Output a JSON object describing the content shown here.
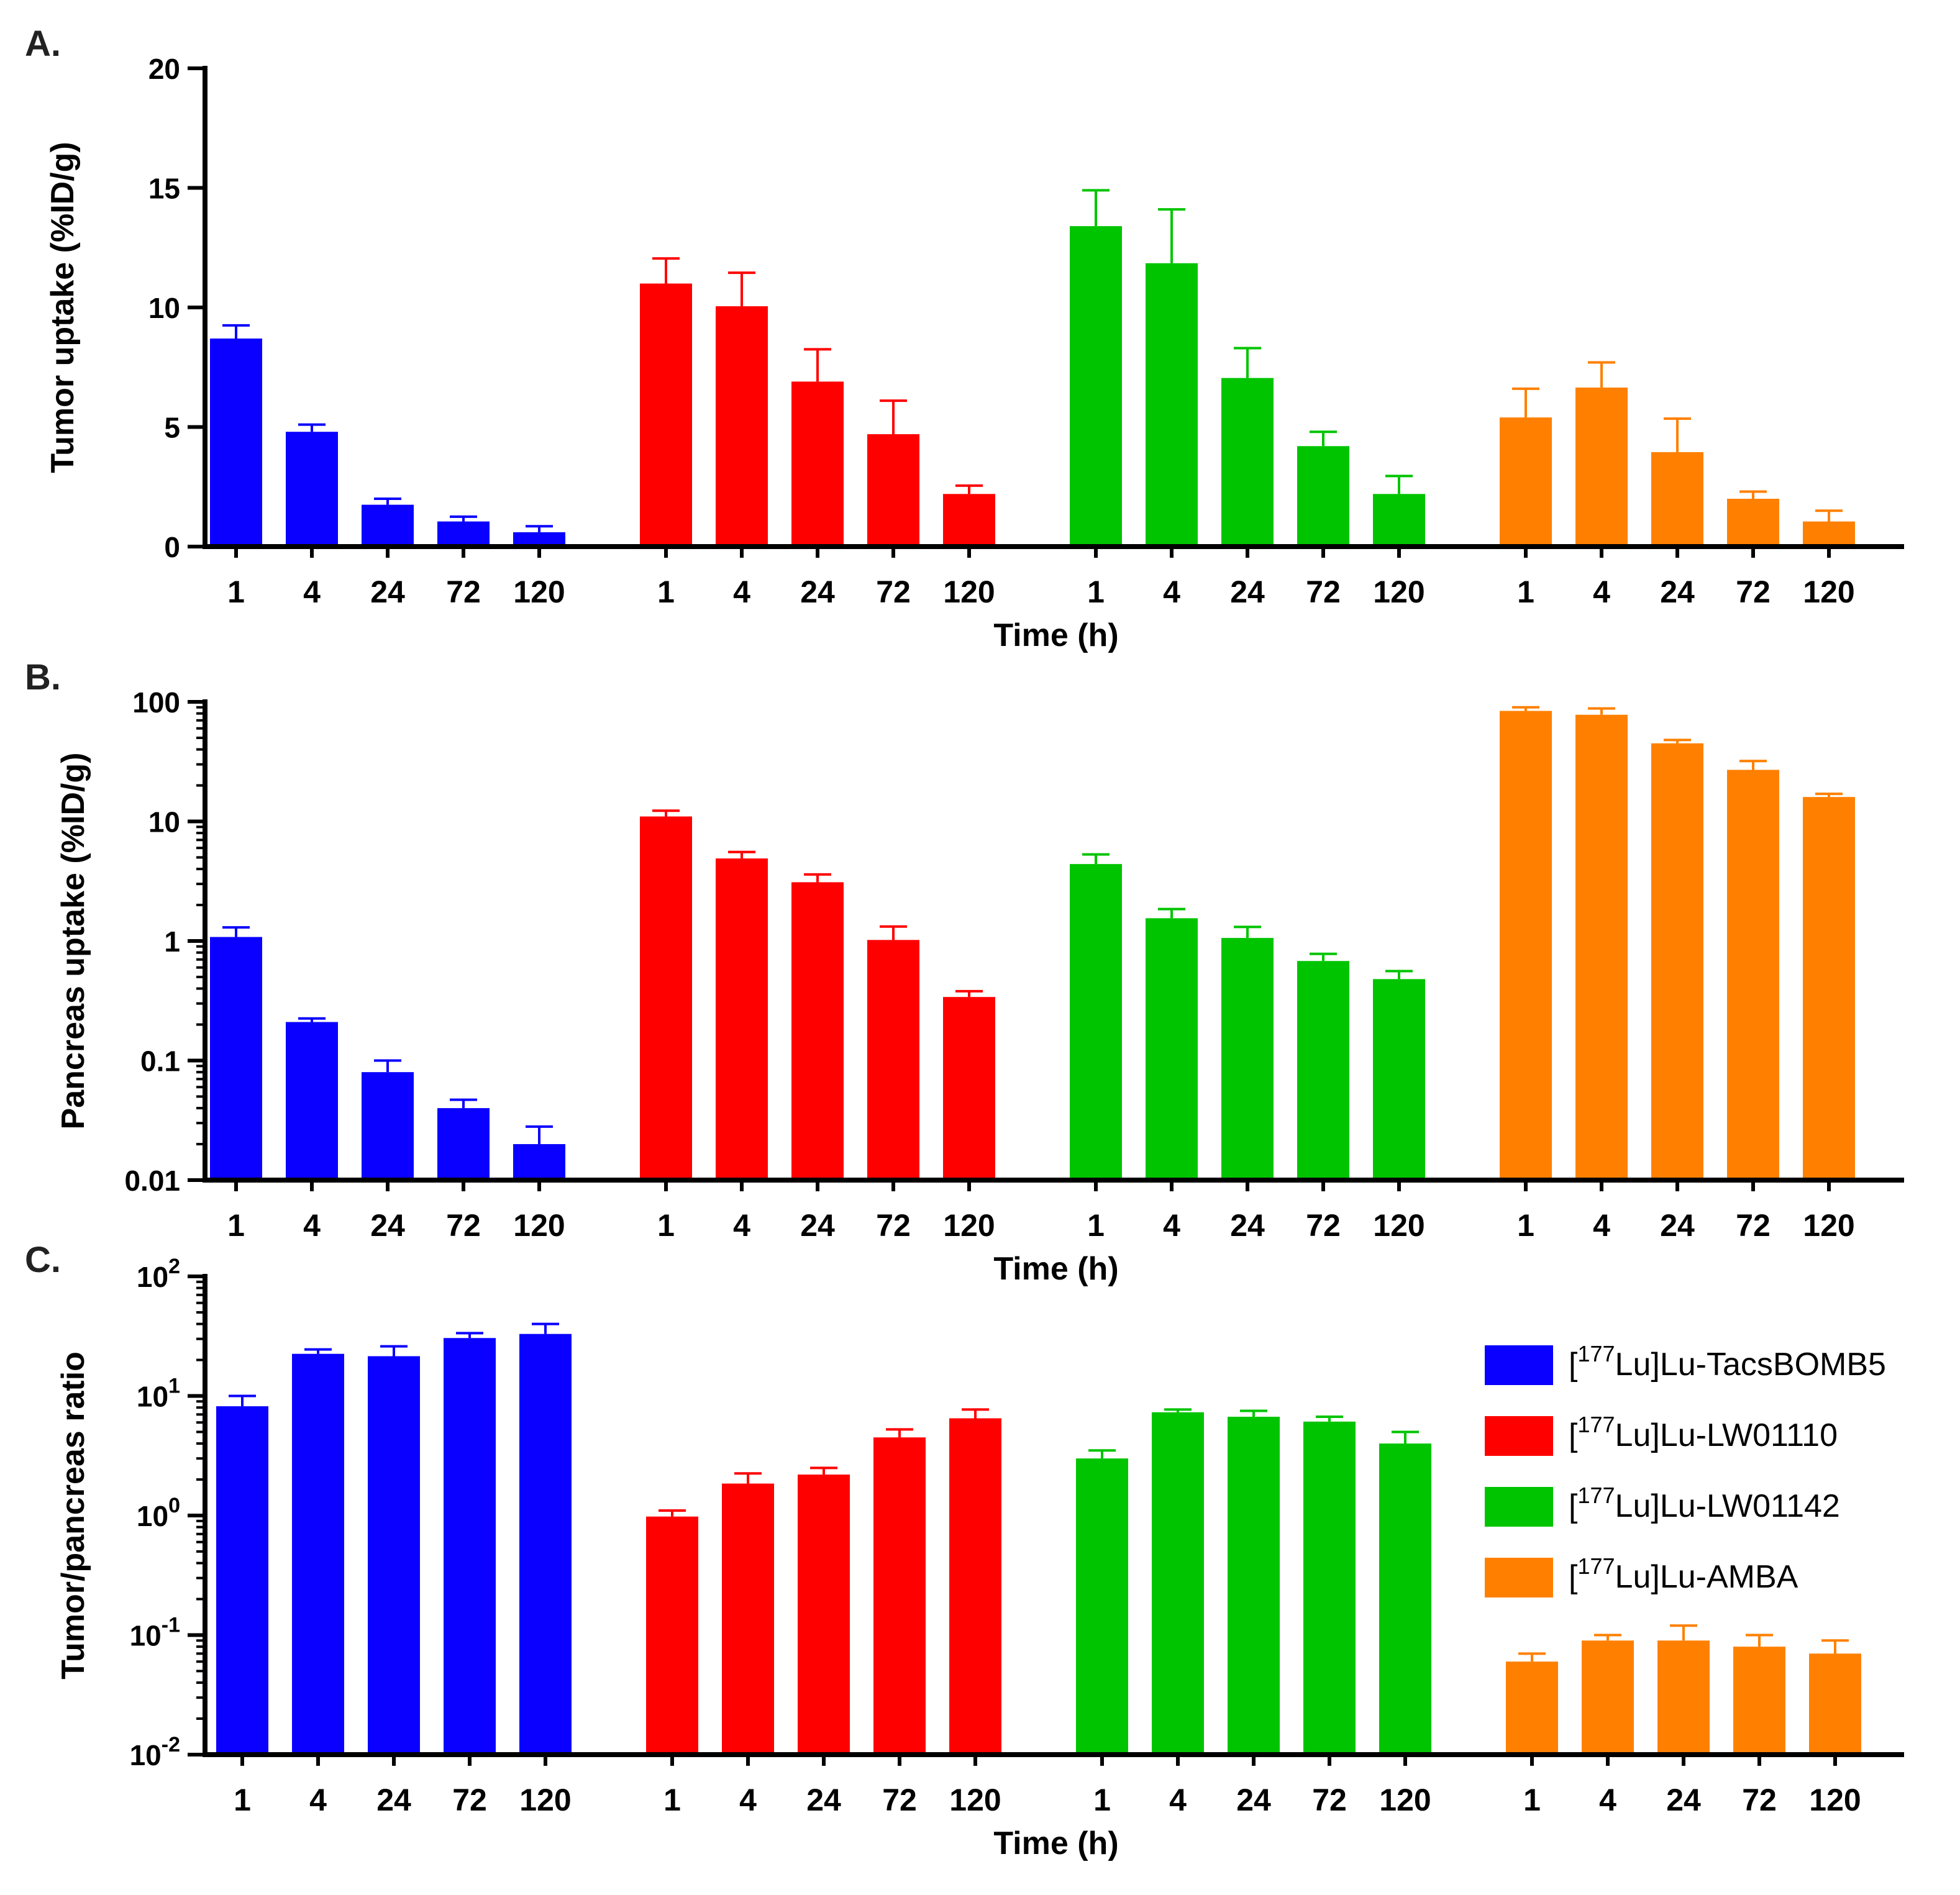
{
  "series": [
    {
      "name": "[177Lu]Lu-TacsBOMB5",
      "prefix": "[",
      "sup": "177",
      "suffix": "Lu]Lu-TacsBOMB5",
      "color": "#0a00ff"
    },
    {
      "name": "[177Lu]Lu-LW01110",
      "prefix": "[",
      "sup": "177",
      "suffix": "Lu]Lu-LW01110",
      "color": "#ff0000"
    },
    {
      "name": "[177Lu]Lu-LW01142",
      "prefix": "[",
      "sup": "177",
      "suffix": "Lu]Lu-LW01142",
      "color": "#00c400"
    },
    {
      "name": "[177Lu]Lu-AMBA",
      "prefix": "[",
      "sup": "177",
      "suffix": "Lu]Lu-AMBA",
      "color": "#ff8000"
    }
  ],
  "chart_data": [
    {
      "type": "bar",
      "panel_label": "A.",
      "title": "",
      "ylabel": "Tumor uptake (%ID/g)",
      "xlabel": "Time (h)",
      "yscale": "linear",
      "ylim": [
        0,
        20
      ],
      "yticks": [
        0,
        5,
        10,
        15,
        20
      ],
      "ytick_labels": [
        "0",
        "5",
        "10",
        "15",
        "20"
      ],
      "categories": [
        "1",
        "4",
        "24",
        "72",
        "120"
      ],
      "series": [
        {
          "name": "[177Lu]Lu-TacsBOMB5",
          "values": [
            8.7,
            4.8,
            1.75,
            1.05,
            0.6
          ],
          "errors": [
            0.55,
            0.3,
            0.25,
            0.2,
            0.25
          ]
        },
        {
          "name": "[177Lu]Lu-LW01110",
          "values": [
            11.0,
            10.05,
            6.9,
            4.7,
            2.2
          ],
          "errors": [
            1.05,
            1.4,
            1.35,
            1.4,
            0.35
          ]
        },
        {
          "name": "[177Lu]Lu-LW01142",
          "values": [
            13.4,
            11.85,
            7.05,
            4.2,
            2.2
          ],
          "errors": [
            1.5,
            2.25,
            1.25,
            0.6,
            0.75
          ]
        },
        {
          "name": "[177Lu]Lu-AMBA",
          "values": [
            5.4,
            6.65,
            3.95,
            2.0,
            1.05
          ],
          "errors": [
            1.2,
            1.05,
            1.4,
            0.3,
            0.45
          ]
        }
      ]
    },
    {
      "type": "bar",
      "panel_label": "B.",
      "title": "",
      "ylabel": "Pancreas uptake (%ID/g)",
      "xlabel": "Time (h)",
      "yscale": "log",
      "ylim": [
        0.01,
        100
      ],
      "yticks": [
        0.01,
        0.1,
        1,
        10,
        100
      ],
      "ytick_labels": [
        "0.01",
        "0.1",
        "1",
        "10",
        "100"
      ],
      "categories": [
        "1",
        "4",
        "24",
        "72",
        "120"
      ],
      "series": [
        {
          "name": "[177Lu]Lu-TacsBOMB5",
          "values": [
            1.08,
            0.21,
            0.08,
            0.04,
            0.02
          ],
          "errors": [
            0.22,
            0.015,
            0.02,
            0.007,
            0.008
          ]
        },
        {
          "name": "[177Lu]Lu-LW01110",
          "values": [
            11.0,
            4.9,
            3.1,
            1.02,
            0.34
          ],
          "errors": [
            1.3,
            0.65,
            0.5,
            0.3,
            0.04
          ]
        },
        {
          "name": "[177Lu]Lu-LW01142",
          "values": [
            4.4,
            1.55,
            1.06,
            0.68,
            0.48
          ],
          "errors": [
            0.9,
            0.3,
            0.25,
            0.1,
            0.08
          ]
        },
        {
          "name": "[177Lu]Lu-AMBA",
          "values": [
            84,
            78,
            45,
            27,
            16
          ],
          "errors": [
            6,
            10,
            3,
            5,
            1
          ]
        }
      ]
    },
    {
      "type": "bar",
      "panel_label": "C.",
      "title": "",
      "ylabel": "Tumor/pancreas ratio",
      "xlabel": "Time (h)",
      "yscale": "log",
      "ylim": [
        0.01,
        100
      ],
      "yticks": [
        0.01,
        0.1,
        1,
        10,
        100
      ],
      "ytick_labels": [
        {
          "base": "10",
          "exp": "-2"
        },
        {
          "base": "10",
          "exp": "-1"
        },
        {
          "base": "10",
          "exp": "0"
        },
        {
          "base": "10",
          "exp": "1"
        },
        {
          "base": "10",
          "exp": "2"
        }
      ],
      "categories": [
        "1",
        "4",
        "24",
        "72",
        "120"
      ],
      "legend": "right",
      "series": [
        {
          "name": "[177Lu]Lu-TacsBOMB5",
          "values": [
            8.2,
            22.5,
            21.5,
            30.5,
            33
          ],
          "errors": [
            1.8,
            2.0,
            4.5,
            3.0,
            7
          ]
        },
        {
          "name": "[177Lu]Lu-LW01110",
          "values": [
            0.98,
            1.85,
            2.2,
            4.5,
            6.5
          ],
          "errors": [
            0.12,
            0.4,
            0.3,
            0.75,
            1.2
          ]
        },
        {
          "name": "[177Lu]Lu-LW01142",
          "values": [
            3.0,
            7.3,
            6.7,
            6.1,
            4.0
          ],
          "errors": [
            0.5,
            0.4,
            0.8,
            0.6,
            1.0
          ]
        },
        {
          "name": "[177Lu]Lu-AMBA",
          "values": [
            0.06,
            0.09,
            0.09,
            0.08,
            0.07
          ],
          "errors": [
            0.01,
            0.01,
            0.03,
            0.02,
            0.02
          ]
        }
      ]
    }
  ]
}
